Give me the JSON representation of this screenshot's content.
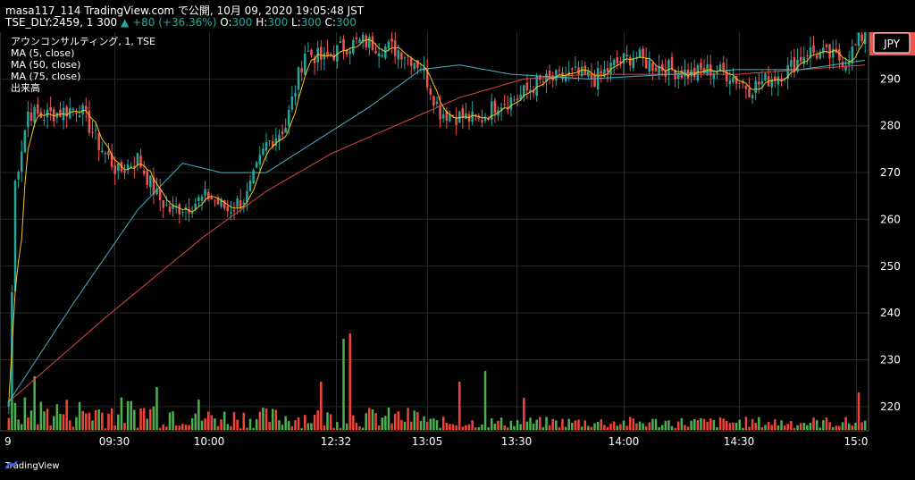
{
  "header": {
    "line1": "masa117_114 TradingView.com で公開, 10月 09, 2020 19:05:48 JST",
    "symbol": "TSE_DLY:2459, 1",
    "last": "300",
    "change": "+80 (+36.36%)",
    "o_label": "O:",
    "o": "300",
    "h_label": "H:",
    "h": "300",
    "l_label": "L:",
    "l": "300",
    "c_label": "C:",
    "c": "300"
  },
  "legend": {
    "title": "アウンコンサルティング, 1, TSE",
    "ma5": "MA (5, close)",
    "ma50": "MA (50, close)",
    "ma75": "MA (75, close)",
    "volume": "出来高"
  },
  "branding": {
    "text": "TradingView"
  },
  "colors": {
    "up": "#26a69a",
    "down": "#ef5350",
    "vol_up": "#4caf50",
    "vol_down": "#f44336",
    "ma5": "#f5c518",
    "ma50": "#3fb7c4",
    "ma75": "#e0473e",
    "grid": "#2a2a2a",
    "price_label_bg": "#ef5350"
  },
  "chart_data": {
    "type": "candlestick",
    "currency": "JPY",
    "ylim": [
      215,
      300
    ],
    "yticks": [
      220,
      230,
      240,
      250,
      260,
      270,
      280,
      290
    ],
    "x_tick_labels": [
      "9",
      "09:30",
      "10:00",
      "12:32",
      "13:05",
      "13:30",
      "14:00",
      "14:30",
      "15:0"
    ],
    "last_price": 300,
    "close_series": [
      {
        "bar": 0,
        "close": 221
      },
      {
        "bar": 2,
        "close": 268
      },
      {
        "bar": 6,
        "close": 283
      },
      {
        "bar": 10,
        "close": 282
      },
      {
        "bar": 16,
        "close": 283
      },
      {
        "bar": 22,
        "close": 284
      },
      {
        "bar": 28,
        "close": 276
      },
      {
        "bar": 34,
        "close": 270
      },
      {
        "bar": 40,
        "close": 273
      },
      {
        "bar": 46,
        "close": 265
      },
      {
        "bar": 50,
        "close": 262
      },
      {
        "bar": 56,
        "close": 263
      },
      {
        "bar": 62,
        "close": 265
      },
      {
        "bar": 68,
        "close": 262
      },
      {
        "bar": 74,
        "close": 265
      },
      {
        "bar": 80,
        "close": 276
      },
      {
        "bar": 86,
        "close": 280
      },
      {
        "bar": 92,
        "close": 296
      },
      {
        "bar": 98,
        "close": 294
      },
      {
        "bar": 104,
        "close": 297
      },
      {
        "bar": 110,
        "close": 298
      },
      {
        "bar": 116,
        "close": 297
      },
      {
        "bar": 122,
        "close": 296
      },
      {
        "bar": 128,
        "close": 293
      },
      {
        "bar": 134,
        "close": 283
      },
      {
        "bar": 140,
        "close": 282
      },
      {
        "bar": 146,
        "close": 281
      },
      {
        "bar": 152,
        "close": 285
      },
      {
        "bar": 158,
        "close": 286
      },
      {
        "bar": 164,
        "close": 289
      },
      {
        "bar": 170,
        "close": 290
      },
      {
        "bar": 176,
        "close": 291
      },
      {
        "bar": 182,
        "close": 290
      },
      {
        "bar": 188,
        "close": 293
      },
      {
        "bar": 194,
        "close": 295
      },
      {
        "bar": 200,
        "close": 293
      },
      {
        "bar": 206,
        "close": 292
      },
      {
        "bar": 212,
        "close": 291
      },
      {
        "bar": 218,
        "close": 292
      },
      {
        "bar": 224,
        "close": 291
      },
      {
        "bar": 230,
        "close": 288
      },
      {
        "bar": 236,
        "close": 290
      },
      {
        "bar": 242,
        "close": 292
      },
      {
        "bar": 248,
        "close": 296
      },
      {
        "bar": 254,
        "close": 295
      },
      {
        "bar": 260,
        "close": 294
      },
      {
        "bar": 266,
        "close": 300
      }
    ],
    "ma50_series": [
      {
        "bar": 0,
        "value": 221
      },
      {
        "bar": 20,
        "value": 242
      },
      {
        "bar": 40,
        "value": 262
      },
      {
        "bar": 54,
        "value": 272
      },
      {
        "bar": 66,
        "value": 270
      },
      {
        "bar": 80,
        "value": 270
      },
      {
        "bar": 96,
        "value": 277
      },
      {
        "bar": 112,
        "value": 284
      },
      {
        "bar": 128,
        "value": 292
      },
      {
        "bar": 140,
        "value": 293
      },
      {
        "bar": 156,
        "value": 291
      },
      {
        "bar": 180,
        "value": 290
      },
      {
        "bar": 206,
        "value": 291
      },
      {
        "bar": 226,
        "value": 292
      },
      {
        "bar": 246,
        "value": 292
      },
      {
        "bar": 266,
        "value": 294
      }
    ],
    "ma75_series": [
      {
        "bar": 0,
        "value": 221
      },
      {
        "bar": 30,
        "value": 239
      },
      {
        "bar": 60,
        "value": 256
      },
      {
        "bar": 80,
        "value": 266
      },
      {
        "bar": 100,
        "value": 274
      },
      {
        "bar": 120,
        "value": 280
      },
      {
        "bar": 140,
        "value": 286
      },
      {
        "bar": 160,
        "value": 290
      },
      {
        "bar": 180,
        "value": 291
      },
      {
        "bar": 200,
        "value": 291
      },
      {
        "bar": 226,
        "value": 291
      },
      {
        "bar": 246,
        "value": 292
      },
      {
        "bar": 266,
        "value": 293
      }
    ],
    "volume_peaks": [
      {
        "bar": 8,
        "volume": 10,
        "up": true
      },
      {
        "bar": 46,
        "volume": 8,
        "up": true
      },
      {
        "bar": 97,
        "volume": 9,
        "up": false
      },
      {
        "bar": 104,
        "volume": 17,
        "up": true
      },
      {
        "bar": 106,
        "volume": 18,
        "up": false
      },
      {
        "bar": 140,
        "volume": 9,
        "up": false
      },
      {
        "bar": 148,
        "volume": 11,
        "up": true
      },
      {
        "bar": 160,
        "volume": 6,
        "up": false
      },
      {
        "bar": 264,
        "volume": 7,
        "up": false
      }
    ]
  }
}
